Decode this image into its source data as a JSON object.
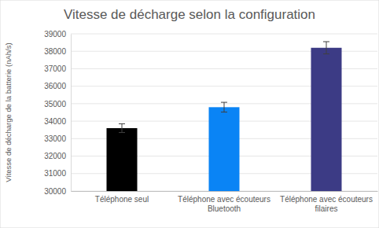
{
  "chart_data": {
    "type": "bar",
    "title": "Vitesse de décharge selon la configuration",
    "y_label": "Vitesse de décharge de la batterie (nAh/s)",
    "categories": [
      "Téléphone seul",
      "Téléphone avec écouteurs Bluetooth",
      "Téléphone avec écouteurs filaires"
    ],
    "values": [
      33600,
      34800,
      38200
    ],
    "errors": [
      250,
      280,
      350
    ],
    "colors": [
      "#000000",
      "#0a84f5",
      "#3c3b85"
    ],
    "ylim": [
      30000,
      39000
    ],
    "yticks": [
      30000,
      31000,
      32000,
      33000,
      34000,
      35000,
      36000,
      37000,
      38000,
      39000
    ],
    "grid": true
  }
}
